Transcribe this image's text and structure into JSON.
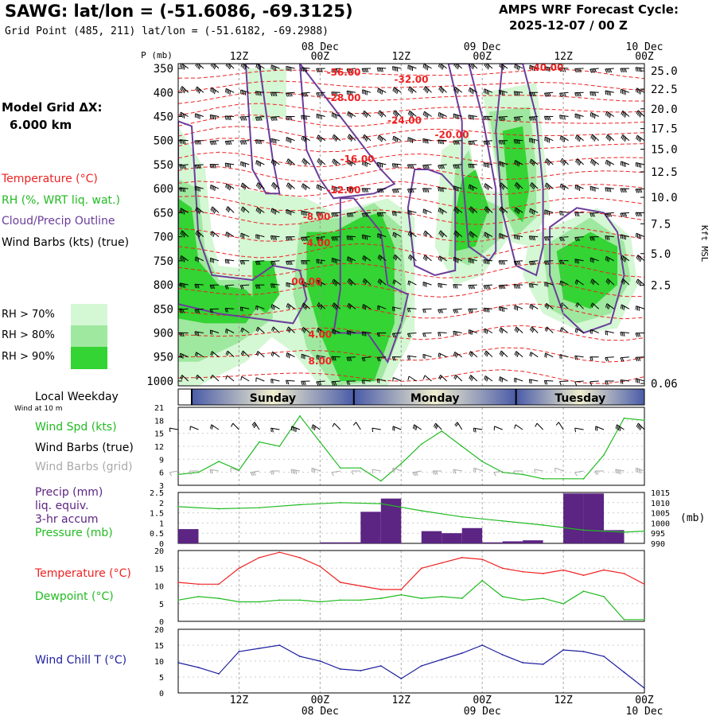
{
  "header": {
    "title": "SAWG:  lat/lon = (-51.6086, -69.3125)",
    "grid_point": "Grid Point (485, 211) lat/lon = (-51.6182, -69.2988)",
    "forecast_cycle_label": "AMPS WRF Forecast Cycle:",
    "forecast_cycle_time": "2025-12-07 / 00  Z"
  },
  "legend": {
    "model_grid_label": "Model Grid ΔX:",
    "model_grid_value": "6.000 km",
    "temperature": "Temperature (°C)",
    "rh": "RH (%, WRT liq. wat.)",
    "cloud": "Cloud/Precip Outline",
    "wind_barbs": "Wind Barbs (kts) (true)",
    "rh_levels": [
      "RH > 70%",
      "RH > 80%",
      "RH > 90%"
    ],
    "local_weekday": "Local Weekday",
    "wind_at_10m": "Wind at 10 m",
    "wind_speed": "Wind Spd (kts)",
    "wind_barbs_true": "Wind Barbs (true)",
    "wind_barbs_grid": "Wind Barbs (grid)",
    "precip": "Precip (mm)",
    "liq_equiv": "liq. equiv.",
    "accum": "3-hr accum",
    "pressure": "Pressure (mb)",
    "temperature2": "Temperature (°C)",
    "dewpoint": "Dewpoint (°C)",
    "wind_chill": "Wind Chill T (°C)"
  },
  "colors": {
    "temperature": "#ee2222",
    "rh": "#22bb22",
    "cloud": "#6a3d9a",
    "wind": "#000000",
    "wind_grid": "#aaaaaa",
    "precip": "#5c2483",
    "pressure": "#22bb22",
    "dewpoint": "#22bb22",
    "wind_chill": "#1f1fa0",
    "rh70": "#d4f7d4",
    "rh80": "#9fe89f",
    "rh90": "#33d433",
    "weekday_dark": "#4a5ba8",
    "weekday_light": "#f0eecf"
  },
  "chart_data": [
    {
      "type": "heatmap",
      "name": "cross-section",
      "ylabel": "P (mb)",
      "pressure_ticks": [
        350,
        400,
        450,
        500,
        550,
        600,
        650,
        700,
        750,
        800,
        850,
        900,
        950,
        1000
      ],
      "ylim": [
        340,
        1010
      ],
      "right_axis_label": "Kft MSL",
      "right_axis_ticks": [
        {
          "label": "25.0",
          "p": 355
        },
        {
          "label": "22.5",
          "p": 393
        },
        {
          "label": "20.0",
          "p": 434
        },
        {
          "label": "17.5",
          "p": 475
        },
        {
          "label": "15.0",
          "p": 518
        },
        {
          "label": "12.5",
          "p": 565
        },
        {
          "label": "10.0",
          "p": 618
        },
        {
          "label": "7.5",
          "p": 673
        },
        {
          "label": "5.0",
          "p": 735
        },
        {
          "label": "2.5",
          "p": 801
        },
        {
          "label": "0.06",
          "p": 1005
        }
      ],
      "top_ticks": [
        {
          "hour": 12,
          "label": "12Z",
          "date": ""
        },
        {
          "hour": 24,
          "label": "00Z",
          "date": "08 Dec"
        },
        {
          "hour": 36,
          "label": "12Z",
          "date": ""
        },
        {
          "hour": 48,
          "label": "00Z",
          "date": "09 Dec"
        },
        {
          "hour": 60,
          "label": "12Z",
          "date": ""
        },
        {
          "hour": 72,
          "label": "00Z",
          "date": "10 Dec"
        }
      ],
      "xlim": [
        3,
        72
      ],
      "temperature_contour_labels": [
        {
          "text": "-36.00",
          "hour": 27.5,
          "p": 365
        },
        {
          "text": "-32.00",
          "hour": 37.5,
          "p": 380
        },
        {
          "text": "-40.00",
          "hour": 57.5,
          "p": 355
        },
        {
          "text": "-28.00",
          "hour": 27.5,
          "p": 418
        },
        {
          "text": "-24.00",
          "hour": 36.5,
          "p": 465
        },
        {
          "text": "-20.00",
          "hour": 43.5,
          "p": 495
        },
        {
          "text": "-16.00",
          "hour": 29.5,
          "p": 545
        },
        {
          "text": "-12.00",
          "hour": 27.5,
          "p": 610
        },
        {
          "text": "-8.00",
          "hour": 23.5,
          "p": 665
        },
        {
          "text": "-4.00",
          "hour": 23.5,
          "p": 720
        },
        {
          "text": "00.00",
          "hour": 22.0,
          "p": 800
        },
        {
          "text": "4.00",
          "hour": 24.0,
          "p": 910
        },
        {
          "text": "8.00",
          "hour": 24.0,
          "p": 965
        }
      ]
    },
    {
      "type": "line",
      "name": "wind-speed",
      "ylabel": "Wind Spd (kts)",
      "ylim": [
        3,
        21
      ],
      "yticks": [
        3,
        6,
        9,
        12,
        15,
        18,
        21
      ],
      "x_hours": [
        3,
        6,
        9,
        12,
        15,
        18,
        21,
        24,
        27,
        30,
        33,
        36,
        39,
        42,
        45,
        48,
        51,
        54,
        57,
        60,
        63,
        66,
        69,
        72
      ],
      "values": [
        5.5,
        6,
        8.5,
        6.5,
        13,
        12,
        19,
        13,
        7,
        7,
        4,
        8,
        12.5,
        15.5,
        12,
        8.5,
        6,
        5.5,
        4.5,
        4.5,
        4.5,
        10,
        18.5,
        18
      ]
    },
    {
      "type": "bar",
      "name": "precip-pressure",
      "ylabel": "Precip (mm)",
      "ylim": [
        0,
        2.5
      ],
      "yticks": [
        0.0,
        0.5,
        1.0,
        1.5,
        2.0,
        2.5
      ],
      "bars": [
        {
          "start": 3,
          "end": 6,
          "value": 0.7
        },
        {
          "start": 24,
          "end": 27,
          "value": 0.05
        },
        {
          "start": 27,
          "end": 30,
          "value": 0.05
        },
        {
          "start": 30,
          "end": 33,
          "value": 1.55
        },
        {
          "start": 33,
          "end": 36,
          "value": 2.2
        },
        {
          "start": 39,
          "end": 42,
          "value": 0.6
        },
        {
          "start": 42,
          "end": 45,
          "value": 0.5
        },
        {
          "start": 45,
          "end": 48,
          "value": 0.75
        },
        {
          "start": 48,
          "end": 51,
          "value": 0.05
        },
        {
          "start": 51,
          "end": 54,
          "value": 0.1
        },
        {
          "start": 54,
          "end": 57,
          "value": 0.15
        },
        {
          "start": 60,
          "end": 63,
          "value": 2.45
        },
        {
          "start": 63,
          "end": 66,
          "value": 2.45
        },
        {
          "start": 66,
          "end": 69,
          "value": 0.65
        }
      ],
      "pressure_label": "(mb)",
      "pressure_ylim": [
        990,
        1015
      ],
      "pressure_ticks": [
        990,
        995,
        1000,
        1005,
        1010,
        1015
      ],
      "pressure_x": [
        3,
        9,
        15,
        21,
        27,
        33,
        39,
        45,
        51,
        57,
        63,
        69,
        72
      ],
      "pressure_values": [
        1008,
        1007,
        1007.5,
        1009,
        1010,
        1009.5,
        1006,
        1003,
        1001,
        999,
        996.5,
        995.5,
        996
      ]
    },
    {
      "type": "line",
      "name": "temperature-dewpoint",
      "ylim": [
        0,
        20
      ],
      "yticks": [
        0,
        5,
        10,
        15,
        20
      ],
      "x_hours": [
        3,
        6,
        9,
        12,
        15,
        18,
        21,
        24,
        27,
        30,
        33,
        36,
        39,
        42,
        45,
        48,
        51,
        54,
        57,
        60,
        63,
        66,
        69,
        72
      ],
      "temperature": [
        11,
        10.5,
        10.5,
        15,
        18,
        19.5,
        18,
        15.5,
        11,
        10,
        9,
        9,
        15,
        16.5,
        18,
        17.5,
        15,
        14,
        13.5,
        14.5,
        13,
        14.5,
        13.5,
        10.5
      ],
      "dewpoint": [
        6,
        7,
        6.5,
        5.5,
        5.5,
        6,
        6,
        5.5,
        6,
        6,
        6.5,
        7.5,
        6.5,
        7,
        6.5,
        11.5,
        7,
        6,
        6.5,
        5,
        8.5,
        7,
        0.5,
        0.5
      ]
    },
    {
      "type": "line",
      "name": "wind-chill",
      "ylim": [
        0,
        20
      ],
      "yticks": [
        0,
        5,
        10,
        15,
        20
      ],
      "x_hours": [
        3,
        6,
        9,
        12,
        15,
        18,
        21,
        24,
        27,
        30,
        33,
        36,
        39,
        42,
        45,
        48,
        51,
        54,
        57,
        60,
        63,
        66,
        69,
        72
      ],
      "values": [
        9.5,
        8,
        6,
        13,
        14,
        15,
        11.5,
        10,
        7.5,
        7,
        8.5,
        4.5,
        8.5,
        10.5,
        12.5,
        15,
        12,
        9.5,
        9,
        13.5,
        13,
        11.5,
        6.5,
        1.5
      ]
    },
    {
      "type": "table",
      "name": "weekday-bar",
      "days": [
        {
          "label": "Sunday",
          "start": 5,
          "end": 29
        },
        {
          "label": "Monday",
          "start": 29,
          "end": 53
        },
        {
          "label": "Tuesday",
          "start": 53,
          "end": 72
        }
      ],
      "bottom_ticks": [
        {
          "hour": 12,
          "label": "12Z",
          "date": ""
        },
        {
          "hour": 24,
          "label": "00Z",
          "date": "08 Dec"
        },
        {
          "hour": 36,
          "label": "12Z",
          "date": ""
        },
        {
          "hour": 48,
          "label": "00Z",
          "date": "09 Dec"
        },
        {
          "hour": 60,
          "label": "12Z",
          "date": ""
        },
        {
          "hour": 72,
          "label": "00Z",
          "date": "10 Dec"
        }
      ]
    }
  ]
}
